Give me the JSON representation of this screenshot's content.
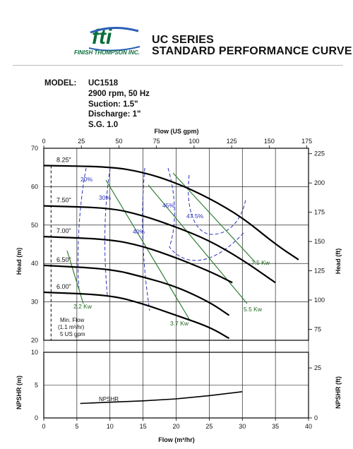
{
  "header": {
    "logo_text": "fti",
    "company": "FINISH THOMPSON INC.",
    "title_line1": "UC SERIES",
    "title_line2": "STANDARD PERFORMANCE CURVE"
  },
  "model_info": {
    "label": "MODEL:",
    "model": "UC1518",
    "speed": "2900 rpm, 50 Hz",
    "suction": "Suction: 1.5\"",
    "discharge": "Discharge: 1\"",
    "sg": "S.G. 1.0"
  },
  "colors": {
    "curve": "#000000",
    "efficiency": "#2b2fb8",
    "power": "#2e7d32",
    "grid": "#000000"
  },
  "chart_data": {
    "type": "line",
    "top_axis": {
      "label": "Flow (US gpm)",
      "ticks": [
        0,
        25,
        50,
        75,
        100,
        125,
        150,
        175
      ]
    },
    "x_axis": {
      "label": "Flow (m³/hr)",
      "ticks": [
        0,
        5,
        10,
        15,
        20,
        25,
        30,
        35,
        40
      ],
      "range": [
        0,
        40
      ]
    },
    "head_axis_m": {
      "label": "Head (m)",
      "ticks": [
        20,
        30,
        40,
        50,
        60,
        70
      ],
      "range": [
        20,
        70
      ]
    },
    "head_axis_ft": {
      "label": "Head (ft)",
      "ticks": [
        75,
        100,
        125,
        150,
        175,
        200,
        225
      ]
    },
    "npshr_axis_m": {
      "label": "NPSHR (m)",
      "ticks": [
        0,
        5,
        10
      ],
      "range": [
        0,
        10
      ]
    },
    "npshr_axis_ft": {
      "label": "NPSHR (ft)",
      "ticks": [
        0,
        25
      ]
    },
    "grid": true,
    "impeller_curves": [
      {
        "label": "8.25\"",
        "x": [
          0,
          10,
          15,
          20,
          25,
          30,
          35,
          38.5
        ],
        "y": [
          65.5,
          65.2,
          63.8,
          61,
          57,
          52,
          45,
          41
        ]
      },
      {
        "label": "7.50\"",
        "x": [
          0,
          10,
          15,
          20,
          25,
          30,
          35
        ],
        "y": [
          55,
          54.5,
          52.5,
          49.5,
          46,
          41,
          35
        ]
      },
      {
        "label": "7.00\"",
        "x": [
          0,
          10,
          15,
          20,
          25,
          28.5
        ],
        "y": [
          47,
          46.3,
          44.5,
          41.5,
          38,
          35
        ]
      },
      {
        "label": "6.50\"",
        "x": [
          0,
          10,
          15,
          20,
          25,
          28
        ],
        "y": [
          39.5,
          38.6,
          36.5,
          34,
          30,
          26.5
        ]
      },
      {
        "label": "6.00\"",
        "x": [
          0,
          10,
          15,
          20,
          25,
          28
        ],
        "y": [
          32.5,
          31.8,
          29.5,
          26.5,
          23.5,
          20.5
        ]
      }
    ],
    "efficiency_labels": [
      "20%",
      "30%",
      "40%",
      "45%",
      "47.5%"
    ],
    "power_labels": [
      "2.2 Kw",
      "3.7 Kw",
      "5.5 Kw",
      "7.5 Kw"
    ],
    "min_flow": {
      "label_line1": "Min. Flow",
      "label_line2": "(1.1 m³/hr)",
      "label_line3": "5 US gpm",
      "x": 1.1
    },
    "npshr_curve": {
      "label": "NPSHR",
      "x": [
        5.5,
        10,
        15,
        20,
        25,
        30
      ],
      "y": [
        2.2,
        2.4,
        2.6,
        2.9,
        3.4,
        4
      ]
    }
  }
}
